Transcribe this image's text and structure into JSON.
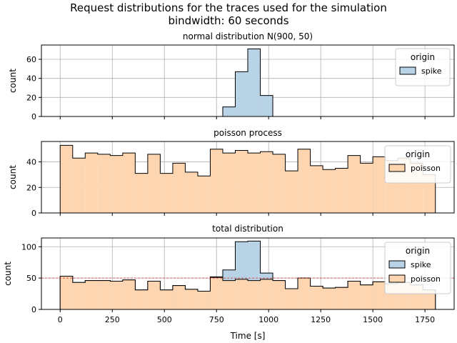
{
  "figure": {
    "suptitle_line1": "Request distributions for the traces used for the simulation",
    "suptitle_line2": "bindwidth: 60 seconds"
  },
  "colors": {
    "spike_fill": "#b9d3e6",
    "poisson_fill": "#fdd5b1",
    "edge": "#000000",
    "grid": "#b0b0b0",
    "mean_line": "#d62728"
  },
  "chart_data": [
    {
      "type": "histogram",
      "title": "normal distribution N(900, 50)",
      "ylabel": "count",
      "xlim": [
        -90,
        1890
      ],
      "ylim": [
        0,
        75
      ],
      "yticks": [
        0,
        20,
        40,
        60
      ],
      "xticks": [
        0,
        250,
        500,
        750,
        1000,
        1250,
        1500,
        1750
      ],
      "grid": true,
      "legend": {
        "title": "origin",
        "placement": "top-right",
        "entries": [
          "spike"
        ]
      },
      "series": [
        {
          "name": "spike",
          "bin_width": 60,
          "bins": [
            [
              780,
              10
            ],
            [
              840,
              47
            ],
            [
              900,
              71
            ],
            [
              960,
              22
            ]
          ]
        }
      ]
    },
    {
      "type": "histogram",
      "title": "poisson process",
      "ylabel": "count",
      "xlim": [
        -90,
        1890
      ],
      "ylim": [
        0,
        56
      ],
      "yticks": [
        0,
        20,
        40
      ],
      "xticks": [
        0,
        250,
        500,
        750,
        1000,
        1250,
        1500,
        1750
      ],
      "grid": true,
      "legend": {
        "title": "origin",
        "placement": "top-right",
        "entries": [
          "poisson"
        ]
      },
      "series": [
        {
          "name": "poisson",
          "bin_start": 0,
          "bin_width": 60,
          "values": [
            53,
            43,
            47,
            46,
            45,
            47,
            31,
            46,
            31,
            39,
            32,
            29,
            50,
            47,
            49,
            47,
            48,
            46,
            33,
            50,
            37,
            34,
            35,
            45,
            39,
            44,
            41,
            43,
            39,
            30
          ]
        }
      ]
    },
    {
      "type": "histogram",
      "title": "total distribution",
      "ylabel": "count",
      "xlabel": "Time [s]",
      "xlim": [
        -90,
        1890
      ],
      "ylim": [
        0,
        114
      ],
      "yticks": [
        0,
        50,
        100
      ],
      "xticks": [
        0,
        250,
        500,
        750,
        1000,
        1250,
        1500,
        1750
      ],
      "grid": true,
      "mean_line": 50,
      "legend": {
        "title": "origin",
        "placement": "top-right",
        "entries": [
          "spike",
          "poisson"
        ]
      },
      "series": [
        {
          "name": "spike",
          "bin_start": 0,
          "bin_width": 60,
          "values": [
            53,
            43,
            46,
            46,
            45,
            47,
            31,
            45,
            31,
            38,
            32,
            29,
            52,
            63,
            108,
            109,
            58,
            46,
            33,
            50,
            37,
            34,
            35,
            45,
            39,
            44,
            41,
            43,
            39,
            31
          ]
        },
        {
          "name": "poisson",
          "bin_start": 0,
          "bin_width": 60,
          "values": [
            53,
            43,
            46,
            46,
            45,
            47,
            31,
            45,
            31,
            38,
            32,
            29,
            51,
            46,
            48,
            46,
            48,
            46,
            33,
            50,
            37,
            34,
            35,
            45,
            39,
            44,
            41,
            43,
            39,
            31
          ]
        }
      ]
    }
  ]
}
